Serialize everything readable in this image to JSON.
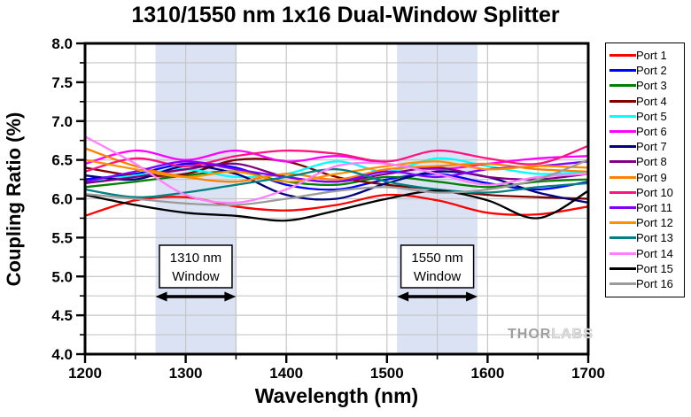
{
  "watermark": {
    "part1": "THOR",
    "part2": "LABS"
  },
  "chart_data": {
    "type": "line",
    "title": "1310/1550 nm 1x16 Dual-Window Splitter",
    "xlabel": "Wavelength (nm)",
    "ylabel": "Coupling Ratio (%)",
    "xlim": [
      1200,
      1700
    ],
    "ylim": [
      4.0,
      8.0
    ],
    "grid": true,
    "legend_position": "right-outside",
    "band_color": "#DBE2F4",
    "grid_color": "#C6C6C6",
    "x_ticks": {
      "labels": [
        "1200",
        "1300",
        "1400",
        "1500",
        "1600",
        "1700"
      ],
      "values": [
        1200,
        1300,
        1400,
        1500,
        1600,
        1700
      ],
      "minor": [
        1250,
        1350,
        1450,
        1550,
        1650
      ]
    },
    "y_ticks": {
      "labels": [
        "8.0",
        "7.5",
        "7.0",
        "6.5",
        "6.0",
        "5.5",
        "5.0",
        "4.5",
        "4.0"
      ],
      "values": [
        8.0,
        7.5,
        7.0,
        6.5,
        6.0,
        5.5,
        5.0,
        4.5,
        4.0
      ],
      "minor": [
        7.75,
        7.25,
        6.75,
        6.25,
        5.75,
        5.25,
        4.75,
        4.25
      ]
    },
    "grid_x": [
      1250,
      1300,
      1350,
      1400,
      1450,
      1500,
      1550,
      1600,
      1650
    ],
    "grid_y": [
      7.75,
      7.5,
      7.25,
      7.0,
      6.75,
      6.5,
      6.25,
      6.0,
      5.75,
      5.5,
      5.25,
      5.0,
      4.75,
      4.5,
      4.25
    ],
    "x": [
      1200,
      1250,
      1300,
      1350,
      1400,
      1450,
      1500,
      1550,
      1600,
      1650,
      1700
    ],
    "series": [
      {
        "name": "Port 1",
        "color": "#FF0000",
        "values": [
          5.78,
          5.98,
          6.02,
          5.9,
          5.85,
          5.92,
          6.05,
          5.98,
          5.82,
          5.8,
          5.9
        ]
      },
      {
        "name": "Port 2",
        "color": "#0000FF",
        "values": [
          6.25,
          6.32,
          6.45,
          6.4,
          6.18,
          6.12,
          6.25,
          6.32,
          6.2,
          6.12,
          6.22
        ]
      },
      {
        "name": "Port 3",
        "color": "#008000",
        "values": [
          6.15,
          6.22,
          6.3,
          6.35,
          6.22,
          6.18,
          6.28,
          6.22,
          6.15,
          6.22,
          6.25
        ]
      },
      {
        "name": "Port 4",
        "color": "#800000",
        "values": [
          6.4,
          6.3,
          6.32,
          6.5,
          6.48,
          6.28,
          6.18,
          6.12,
          6.05,
          6.02,
          6.0
        ]
      },
      {
        "name": "Port 5",
        "color": "#00FFFF",
        "values": [
          6.22,
          6.3,
          6.38,
          6.28,
          6.32,
          6.48,
          6.35,
          6.52,
          6.42,
          6.32,
          6.35
        ]
      },
      {
        "name": "Port 6",
        "color": "#FF00FF",
        "values": [
          6.45,
          6.62,
          6.5,
          6.62,
          6.48,
          6.55,
          6.45,
          6.38,
          6.45,
          6.52,
          6.55
        ]
      },
      {
        "name": "Port 7",
        "color": "#000080",
        "values": [
          6.3,
          6.25,
          6.42,
          6.32,
          6.05,
          6.0,
          6.2,
          6.35,
          6.28,
          6.08,
          5.95
        ]
      },
      {
        "name": "Port 8",
        "color": "#800080",
        "values": [
          6.2,
          6.28,
          6.38,
          6.45,
          6.28,
          6.22,
          6.32,
          6.4,
          6.28,
          6.25,
          6.32
        ]
      },
      {
        "name": "Port 9",
        "color": "#FF8000",
        "values": [
          6.65,
          6.42,
          6.28,
          6.22,
          6.32,
          6.25,
          6.38,
          6.42,
          6.45,
          6.38,
          6.35
        ]
      },
      {
        "name": "Port 10",
        "color": "#FF1480",
        "values": [
          6.35,
          6.52,
          6.42,
          6.55,
          6.62,
          6.58,
          6.48,
          6.62,
          6.52,
          6.45,
          6.68
        ]
      },
      {
        "name": "Port 11",
        "color": "#8000FF",
        "values": [
          6.22,
          6.35,
          6.48,
          6.38,
          6.28,
          6.22,
          6.35,
          6.28,
          6.38,
          6.42,
          6.48
        ]
      },
      {
        "name": "Port 12",
        "color": "#FF9100",
        "values": [
          6.5,
          6.38,
          6.28,
          6.35,
          6.22,
          6.32,
          6.42,
          6.48,
          6.38,
          6.42,
          6.4
        ]
      },
      {
        "name": "Port 13",
        "color": "#008080",
        "values": [
          6.12,
          6.02,
          6.08,
          6.18,
          6.28,
          6.38,
          6.22,
          6.12,
          6.08,
          6.15,
          6.2
        ]
      },
      {
        "name": "Port 14",
        "color": "#FF80FF",
        "values": [
          6.8,
          6.45,
          6.05,
          5.95,
          6.12,
          6.42,
          6.45,
          6.32,
          6.18,
          6.28,
          6.32
        ]
      },
      {
        "name": "Port 15",
        "color": "#000000",
        "values": [
          6.05,
          5.92,
          5.82,
          5.78,
          5.72,
          5.85,
          6.0,
          6.1,
          5.98,
          5.75,
          6.1
        ]
      },
      {
        "name": "Port 16",
        "color": "#9B9B9B",
        "values": [
          6.06,
          6.0,
          5.94,
          5.92,
          6.0,
          6.1,
          6.15,
          6.08,
          6.12,
          6.25,
          6.5
        ]
      }
    ],
    "windows": [
      {
        "lines": [
          "1310 nm",
          "Window"
        ],
        "center": 1310,
        "arrow_range": [
          1270,
          1350
        ]
      },
      {
        "lines": [
          "1550 nm",
          "Window"
        ],
        "center": 1550,
        "arrow_range": [
          1510,
          1590
        ]
      }
    ]
  }
}
